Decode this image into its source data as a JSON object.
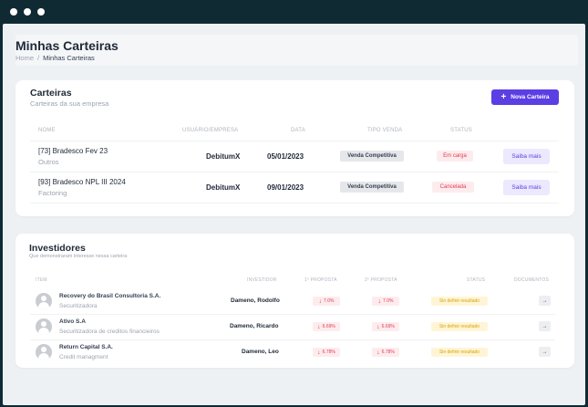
{
  "page": {
    "title": "Minhas Carteiras",
    "breadcrumb": {
      "home": "Home",
      "separator": "/",
      "current": "Minhas Carteiras"
    }
  },
  "carteiras": {
    "title": "Carteiras",
    "subtitle": "Carteiras da sua empresa",
    "new_button": "Nova Carteira",
    "columns": [
      "NOME",
      "USUÁRIO/EMPRESA",
      "DATA",
      "TIPO VENDA",
      "STATUS"
    ],
    "rows": [
      {
        "name": "[73] Bradesco Fev 23",
        "category": "Outros",
        "user": "DebitumX",
        "date": "05/01/2023",
        "type": "Venda Competitiva",
        "status": "Em carga",
        "action": "Saiba mais"
      },
      {
        "name": "[93] Bradesco NPL III 2024",
        "category": "Factoring",
        "user": "DebitumX",
        "date": "09/01/2023",
        "type": "Venda Competitiva",
        "status": "Cancelada",
        "action": "Saiba mais"
      }
    ]
  },
  "investidores": {
    "title": "Investidores",
    "subtitle": "Que demonstraram interesse nessa carteira",
    "columns": [
      "ITEM",
      "INVESTIDOR",
      "1º PROPOSTA",
      "2º PROPOSTA",
      "STATUS",
      "DOCUMENTOS"
    ],
    "rows": [
      {
        "name": "Recovery do Brasil Consultoria S.A.",
        "kind": "Securitizadora",
        "investor": "Dameno, Rodolfo",
        "p1": "7.0%",
        "p2": "7.0%",
        "status": "Sin definir resultado"
      },
      {
        "name": "Ativo S.A",
        "kind": "Securitizadora de creditos financieiros",
        "investor": "Dameno, Ricardo",
        "p1": "6.69%",
        "p2": "6.69%",
        "status": "Sin definir resultado"
      },
      {
        "name": "Return Capital S.A.",
        "kind": "Credit managment",
        "investor": "Dameno, Leo",
        "p1": "6.78%",
        "p2": "6.78%",
        "status": "Sin definir resultado"
      }
    ]
  },
  "icons": {
    "plus": "plus-icon",
    "arrow_down": "arrow-down-icon",
    "arrow_right": "arrow-right-icon",
    "avatar": "user-avatar-icon"
  },
  "colors": {
    "accent": "#5b3fe4",
    "danger": "#e53950",
    "warning": "#d9a300",
    "frame": "#0f2a33"
  }
}
